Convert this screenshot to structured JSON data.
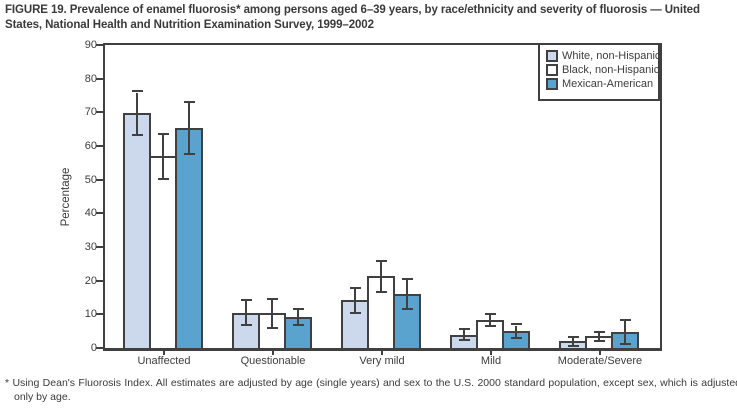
{
  "title": "FIGURE 19. Prevalence of enamel fluorosis* among persons aged 6–39 years, by race/ethnicity and severity of fluorosis — United States, National Health and Nutrition Examination Survey, 1999–2002",
  "footnote": "* Using Dean's Fluorosis Index. All estimates are adjusted by age (single years) and sex to the U.S. 2000 standard population, except sex, which is adjusted only by age.",
  "colors": {
    "axis": "#404040",
    "text": "#3a3a3a",
    "white_non_hispanic_fill": "#ccd9ec",
    "black_non_hispanic_fill": "#ffffff",
    "mexican_american_fill": "#5ba3cf"
  },
  "chart_data": {
    "type": "bar",
    "title": "",
    "xlabel": "",
    "ylabel": "Percentage",
    "ylim": [
      0,
      90
    ],
    "yticks": [
      0,
      10,
      20,
      30,
      40,
      50,
      60,
      70,
      80,
      90
    ],
    "grid": false,
    "legend_position": "top-right",
    "error_bars": true,
    "categories": [
      "Unaffected",
      "Questionable",
      "Very mild",
      "Mild",
      "Moderate/Severe"
    ],
    "series": [
      {
        "name": "White, non-Hispanic",
        "color": "#ccd9ec",
        "values": [
          69.9,
          10.4,
          14.2,
          4.0,
          2.0
        ],
        "ci_low": [
          63.7,
          7.0,
          10.8,
          2.7,
          1.0
        ],
        "ci_high": [
          76.0,
          13.9,
          17.6,
          5.4,
          3.1
        ]
      },
      {
        "name": "Black, non-Hispanic",
        "color": "#ffffff",
        "values": [
          56.9,
          10.4,
          21.3,
          8.2,
          3.5
        ],
        "ci_low": [
          50.4,
          6.1,
          16.9,
          6.7,
          2.3
        ],
        "ci_high": [
          63.3,
          14.4,
          25.5,
          9.8,
          4.6
        ]
      },
      {
        "name": "Mexican-American",
        "color": "#5ba3cf",
        "values": [
          65.4,
          9.2,
          16.1,
          5.0,
          4.7
        ],
        "ci_low": [
          57.8,
          7.2,
          12.0,
          3.3,
          1.4
        ],
        "ci_high": [
          72.8,
          11.3,
          20.2,
          6.7,
          8.1
        ]
      }
    ]
  }
}
